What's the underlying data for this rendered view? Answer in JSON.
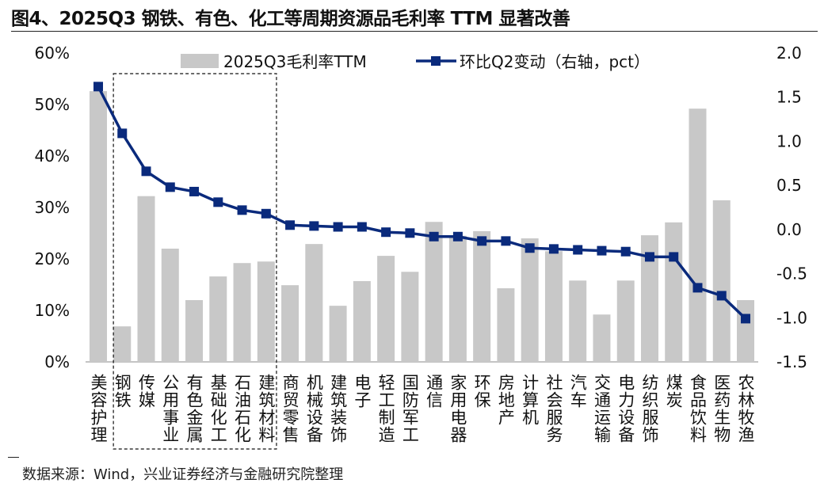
{
  "title": "图4、2025Q3 钢铁、有色、化工等周期资源品毛利率 TTM 显著改善",
  "source": "数据来源：Wind，兴业证券经济与金融研究院整理",
  "chart_data": {
    "type": "bar+line",
    "categories": [
      "美容护理",
      "钢铁",
      "传媒",
      "公用事业",
      "有色金属",
      "基础化工",
      "石油石化",
      "建筑材料",
      "商贸零售",
      "机械设备",
      "建筑装饰",
      "电子",
      "轻工制造",
      "国防军工",
      "通信",
      "家用电器",
      "环保",
      "房地产",
      "计算机",
      "社会服务",
      "汽车",
      "交通运输",
      "电力设备",
      "纺织服饰",
      "煤炭",
      "食品饮料",
      "医药生物",
      "农林牧渔"
    ],
    "series": [
      {
        "name": "2025Q3毛利率TTM",
        "type": "bar",
        "axis": "left",
        "color": "#c8c8c8",
        "values": [
          52.6,
          6.9,
          32.2,
          22.0,
          12.0,
          16.6,
          19.2,
          19.5,
          14.9,
          22.9,
          10.9,
          15.7,
          20.6,
          17.5,
          27.2,
          24.5,
          25.4,
          14.3,
          24.0,
          21.5,
          15.8,
          9.2,
          15.8,
          24.6,
          27.1,
          49.2,
          31.4,
          12.0
        ]
      },
      {
        "name": "环比Q2变动（右轴，pct）",
        "type": "line",
        "axis": "right",
        "color": "#0a2a7c",
        "values": [
          1.62,
          1.09,
          0.66,
          0.48,
          0.43,
          0.31,
          0.22,
          0.18,
          0.05,
          0.04,
          0.03,
          0.03,
          -0.03,
          -0.04,
          -0.08,
          -0.08,
          -0.13,
          -0.13,
          -0.21,
          -0.22,
          -0.23,
          -0.24,
          -0.25,
          -0.31,
          -0.31,
          -0.66,
          -0.75,
          -1.01
        ]
      }
    ],
    "left_axis": {
      "ylim": [
        0,
        60
      ],
      "ticks": [
        "0%",
        "10%",
        "20%",
        "30%",
        "40%",
        "50%",
        "60%"
      ]
    },
    "right_axis": {
      "ylim": [
        -1.5,
        2.0
      ],
      "ticks": [
        "-1.5",
        "-1.0",
        "-0.5",
        "0.0",
        "0.5",
        "1.0",
        "1.5",
        "2.0"
      ]
    },
    "legend_placement": "top-center",
    "highlight_box": {
      "from": "钢铁",
      "to": "建筑材料",
      "style": "dashed"
    },
    "grid": false
  }
}
